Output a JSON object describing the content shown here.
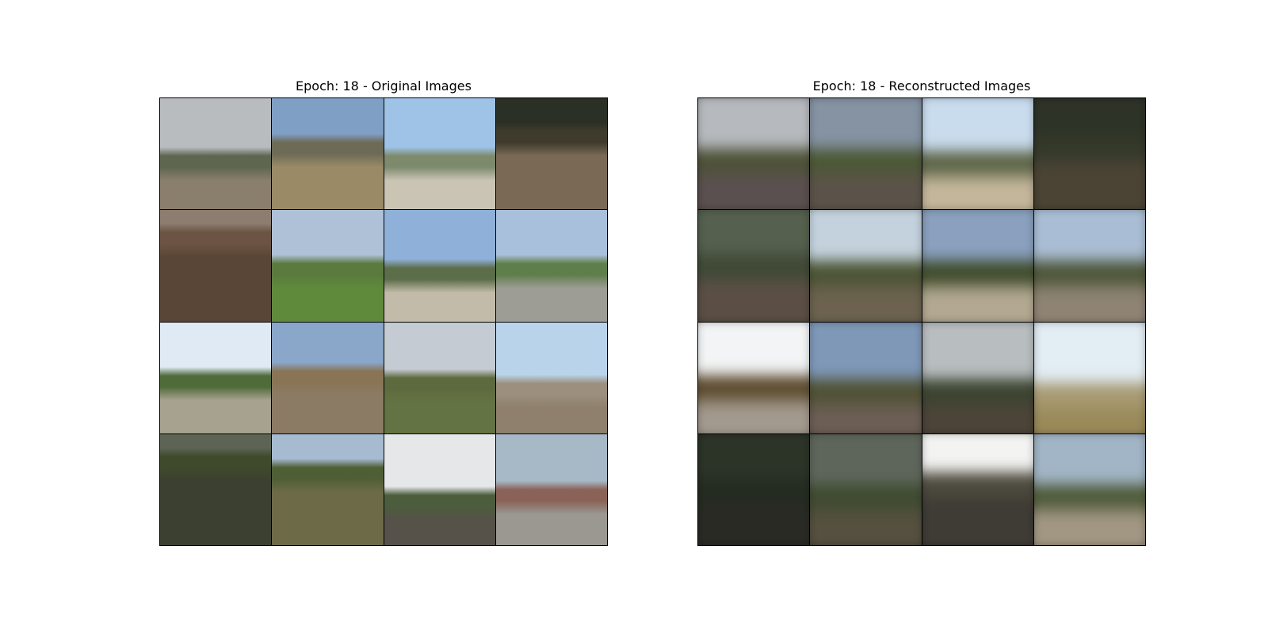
{
  "figure": {
    "left_title": "Epoch: 18 - Original Images",
    "right_title": "Epoch: 18 - Reconstructed Images"
  },
  "originals": [
    {
      "sky": "#b9bcbf",
      "mid": "#5e6650",
      "ground": "#8a7e6c",
      "horizon": 52
    },
    {
      "sky": "#7f9fc4",
      "mid": "#6d6a56",
      "ground": "#9b8a66",
      "horizon": 40
    },
    {
      "sky": "#9fc3e6",
      "mid": "#7d8a6c",
      "ground": "#c9c4b4",
      "horizon": 52
    },
    {
      "sky": "#2b3026",
      "mid": "#3f3b2c",
      "ground": "#7a6a55",
      "horizon": 30
    },
    {
      "sky": "#8c7d70",
      "mid": "#6b5443",
      "ground": "#5a4636",
      "horizon": 20
    },
    {
      "sky": "#aec1d6",
      "mid": "#5a7a3e",
      "ground": "#5f8a3c",
      "horizon": 48
    },
    {
      "sky": "#8fb0d8",
      "mid": "#5c6d4a",
      "ground": "#c2bba9",
      "horizon": 52
    },
    {
      "sky": "#a9c0dc",
      "mid": "#5f7f4a",
      "ground": "#9d9c95",
      "horizon": 48
    },
    {
      "sky": "#dfeaf5",
      "mid": "#4f6b3a",
      "ground": "#a7a28f",
      "horizon": 48
    },
    {
      "sky": "#8aa6c8",
      "mid": "#8a7456",
      "ground": "#8c7b64",
      "horizon": 44
    },
    {
      "sky": "#c5cbd2",
      "mid": "#5d6a3e",
      "ground": "#647343",
      "horizon": 50
    },
    {
      "sky": "#b9d3ea",
      "mid": "#9c8f7d",
      "ground": "#8e806d",
      "horizon": 55
    },
    {
      "sky": "#5d6456",
      "mid": "#3f4a2c",
      "ground": "#3b4030",
      "horizon": 20
    },
    {
      "sky": "#a6bad0",
      "mid": "#4f5f35",
      "ground": "#6d6a47",
      "horizon": 30
    },
    {
      "sky": "#e5e7e8",
      "mid": "#4b5d3c",
      "ground": "#565149",
      "horizon": 55
    },
    {
      "sky": "#a7b8c6",
      "mid": "#8a6257",
      "ground": "#9a9891",
      "horizon": 50
    }
  ],
  "reconstructions": [
    {
      "sky": "#b6b9bd",
      "mid": "#4d5237",
      "ground": "#5b5050",
      "horizon": 50
    },
    {
      "sky": "#8593a3",
      "mid": "#4c5836",
      "ground": "#5b5349",
      "horizon": 50
    },
    {
      "sky": "#c9dcee",
      "mid": "#5c6447",
      "ground": "#c4b69b",
      "horizon": 52
    },
    {
      "sky": "#2d3327",
      "mid": "#34392a",
      "ground": "#4b4435",
      "horizon": 40
    },
    {
      "sky": "#55604e",
      "mid": "#3f4935",
      "ground": "#5b4f45",
      "horizon": 45
    },
    {
      "sky": "#c4d2de",
      "mid": "#4b5433",
      "ground": "#6c624f",
      "horizon": 50
    },
    {
      "sky": "#8aa0be",
      "mid": "#3f4b2b",
      "ground": "#b3a991",
      "horizon": 50
    },
    {
      "sky": "#a9bed4",
      "mid": "#4d5538",
      "ground": "#8f8474",
      "horizon": 50
    },
    {
      "sky": "#f2f4f5",
      "mid": "#5c4a2e",
      "ground": "#a39a8e",
      "horizon": 52
    },
    {
      "sky": "#7f98b8",
      "mid": "#4f5134",
      "ground": "#6c5e55",
      "horizon": 55
    },
    {
      "sky": "#b8bdc0",
      "mid": "#3b4430",
      "ground": "#4d4438",
      "horizon": 55
    },
    {
      "sky": "#e2edf4",
      "mid": "#a89a73",
      "ground": "#9a8a5a",
      "horizon": 58
    },
    {
      "sky": "#2c3327",
      "mid": "#242b20",
      "ground": "#2a2a25",
      "horizon": 45
    },
    {
      "sky": "#5e665c",
      "mid": "#3f4b30",
      "ground": "#55503f",
      "horizon": 50
    },
    {
      "sky": "#f3f3f2",
      "mid": "#4d4a3e",
      "ground": "#3f3b35",
      "horizon": 40
    },
    {
      "sky": "#a1b5c6",
      "mid": "#4e5a39",
      "ground": "#a29783",
      "horizon": 50
    }
  ]
}
